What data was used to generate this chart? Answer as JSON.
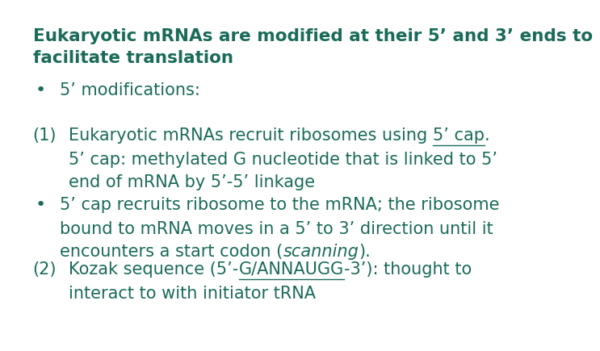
{
  "background_color": "#ffffff",
  "text_color": "#1a6b5a",
  "title_line1": "Eukaryotic mRNAs are modified at their 5’ and 3’ ends to",
  "title_line2": "facilitate translation",
  "title_fontsize": 15.5,
  "body_fontsize": 15,
  "bullet_fontsize": 16
}
